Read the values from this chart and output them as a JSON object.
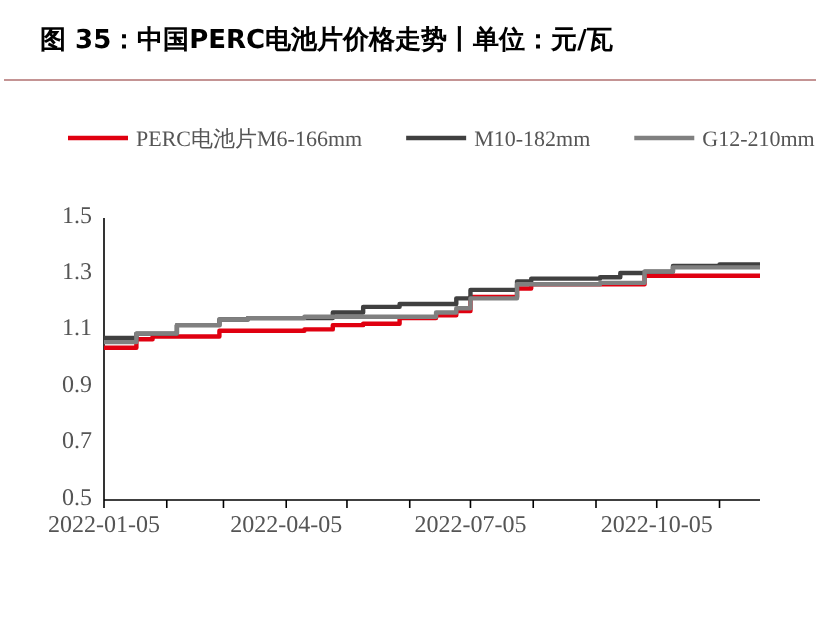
{
  "chart_data": {
    "type": "step",
    "title": "图 35：中国PERC电池片价格走势丨单位：元/瓦",
    "xlim": [
      "2022-01-05",
      "2022-11-25"
    ],
    "xticks": [
      {
        "value": "2022-01-05",
        "label": "2022-01-05"
      },
      {
        "value": "2022-02-05",
        "label": null
      },
      {
        "value": "2022-03-05",
        "label": null
      },
      {
        "value": "2022-04-05",
        "label": "2022-04-05"
      },
      {
        "value": "2022-05-05",
        "label": null
      },
      {
        "value": "2022-06-05",
        "label": null
      },
      {
        "value": "2022-07-05",
        "label": "2022-07-05"
      },
      {
        "value": "2022-08-05",
        "label": null
      },
      {
        "value": "2022-09-05",
        "label": null
      },
      {
        "value": "2022-10-05",
        "label": "2022-10-05"
      },
      {
        "value": "2022-11-05",
        "label": null
      }
    ],
    "ylim": [
      0.5,
      1.5
    ],
    "yticks": [
      0.5,
      0.7,
      0.9,
      1.1,
      1.3,
      1.5
    ],
    "grid": false,
    "legend": "top",
    "series": [
      {
        "name": "PERC电池片M6-166mm",
        "color": "#e00010",
        "x": [
          "2022-01-05",
          "2022-01-21",
          "2022-01-29",
          "2022-03-03",
          "2022-04-14",
          "2022-04-28",
          "2022-05-13",
          "2022-05-31",
          "2022-06-18",
          "2022-06-28",
          "2022-07-05",
          "2022-07-28",
          "2022-08-04",
          "2022-09-29",
          "2022-11-25"
        ],
        "values": [
          1.04,
          1.07,
          1.08,
          1.1,
          1.105,
          1.12,
          1.125,
          1.145,
          1.155,
          1.17,
          1.22,
          1.25,
          1.265,
          1.295,
          1.295
        ]
      },
      {
        "name": "M10-182mm",
        "color": "#404040",
        "x": [
          "2022-01-05",
          "2022-01-21",
          "2022-02-10",
          "2022-03-03",
          "2022-03-17",
          "2022-04-28",
          "2022-05-13",
          "2022-05-31",
          "2022-06-28",
          "2022-07-05",
          "2022-07-28",
          "2022-08-04",
          "2022-09-07",
          "2022-09-17",
          "2022-09-29",
          "2022-10-13",
          "2022-11-05",
          "2022-11-25"
        ],
        "values": [
          1.075,
          1.09,
          1.12,
          1.14,
          1.145,
          1.165,
          1.185,
          1.195,
          1.215,
          1.245,
          1.275,
          1.285,
          1.29,
          1.305,
          1.31,
          1.33,
          1.335,
          1.335
        ]
      },
      {
        "name": "G12-210mm",
        "color": "#808080",
        "x": [
          "2022-01-05",
          "2022-01-21",
          "2022-02-10",
          "2022-03-03",
          "2022-03-17",
          "2022-04-14",
          "2022-06-18",
          "2022-06-28",
          "2022-07-05",
          "2022-07-28",
          "2022-09-07",
          "2022-09-29",
          "2022-10-13",
          "2022-11-25"
        ],
        "values": [
          1.06,
          1.09,
          1.12,
          1.14,
          1.145,
          1.15,
          1.165,
          1.18,
          1.215,
          1.265,
          1.27,
          1.31,
          1.325,
          1.325
        ]
      }
    ]
  }
}
